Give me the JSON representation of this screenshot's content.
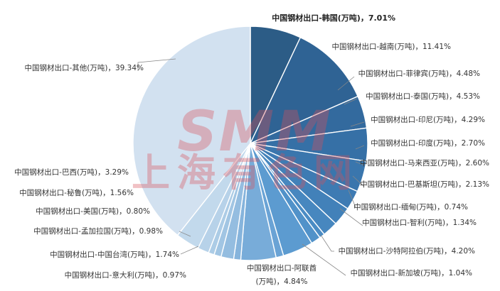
{
  "chart_data": {
    "type": "pie",
    "slices": [
      {
        "label": "中国钢材出口-韩国(万吨)",
        "value": 7.01,
        "text": "中国钢材出口-韩国(万吨)，7.01%",
        "color": "#2c5c86",
        "bold": true
      },
      {
        "label": "中国钢材出口-越南(万吨)",
        "value": 11.41,
        "text": "中国钢材出口-越南(万吨)，11.41%",
        "color": "#2f6394"
      },
      {
        "label": "中国钢材出口-菲律宾(万吨)",
        "value": 4.48,
        "text": "中国钢材出口-菲律宾(万吨)，4.48%",
        "color": "#336a9e"
      },
      {
        "label": "中国钢材出口-泰国(万吨)",
        "value": 4.53,
        "text": "中国钢材出口-泰国(万吨)，4.53%",
        "color": "#3670a6"
      },
      {
        "label": "中国钢材出口-印尼(万吨)",
        "value": 4.29,
        "text": "中国钢材出口-印尼(万吨)，4.29%",
        "color": "#3a76ad"
      },
      {
        "label": "中国钢材出口-印度(万吨)",
        "value": 2.7,
        "text": "中国钢材出口-印度(万吨)，2.70%",
        "color": "#3e7bb3"
      },
      {
        "label": "中国钢材出口-马来西亚(万吨)",
        "value": 2.6,
        "text": "中国钢材出口-马来西亚(万吨)，2.60%",
        "color": "#4281b9"
      },
      {
        "label": "中国钢材出口-巴基斯坦(万吨)",
        "value": 2.13,
        "text": "中国钢材出口-巴基斯坦(万吨)，2.13%",
        "color": "#4787bf"
      },
      {
        "label": "中国钢材出口-缅甸(万吨)",
        "value": 0.74,
        "text": "中国钢材出口-缅甸(万吨)，0.74%",
        "color": "#4b8cc4"
      },
      {
        "label": "中国钢材出口-智利(万吨)",
        "value": 1.34,
        "text": "中国钢材出口-智利(万吨)，1.34%",
        "color": "#5192c9"
      },
      {
        "label": "中国钢材出口-沙特阿拉伯(万吨)",
        "value": 4.2,
        "text": "中国钢材出口-沙特阿拉伯(万吨)，4.20%",
        "color": "#5c9bd0"
      },
      {
        "label": "中国钢材出口-新加坡(万吨)",
        "value": 1.04,
        "text": "中国钢材出口-新加坡(万吨)，1.04%",
        "color": "#6aa3d5"
      },
      {
        "label": "中国钢材出口-阿联酋(万吨)",
        "value": 4.84,
        "text_lines": [
          "中国钢材出口-阿联酋",
          "(万吨)，4.84%"
        ],
        "color": "#78acd9"
      },
      {
        "label": "中国钢材出口-意大利(万吨)",
        "value": 0.97,
        "text": "中国钢材出口-意大利(万吨)，0.97%",
        "color": "#86b4dc"
      },
      {
        "label": "中国钢材出口-中国台湾(万吨)",
        "value": 1.74,
        "text": "中国钢材出口-中国台湾(万吨)，1.74%",
        "color": "#94bde0"
      },
      {
        "label": "中国钢材出口-孟加拉国(万吨)",
        "value": 0.98,
        "text": "中国钢材出口-孟加拉国(万吨)，0.98%",
        "color": "#a1c5e3"
      },
      {
        "label": "中国钢材出口-美国(万吨)",
        "value": 0.8,
        "text": "中国钢材出口-美国(万吨)，0.80%",
        "color": "#accce6"
      },
      {
        "label": "中国钢材出口-秘鲁(万吨)",
        "value": 1.56,
        "text": "中国钢材出口-秘鲁(万吨)，1.56%",
        "color": "#b7d2e9"
      },
      {
        "label": "中国钢材出口-巴西(万吨)",
        "value": 3.29,
        "text": "中国钢材出口-巴西(万吨)，3.29%",
        "color": "#c2d9ec"
      },
      {
        "label": "中国钢材出口-其他(万吨)",
        "value": 39.34,
        "text": "中国钢材出口-其他(万吨)，39.34%",
        "color": "#d2e1f0"
      }
    ],
    "legend": "none",
    "start_angle_deg": 0,
    "direction": "clockwise"
  },
  "watermark": {
    "latin": "SMM",
    "chinese": "上海有色网",
    "color": "#d9505a"
  }
}
